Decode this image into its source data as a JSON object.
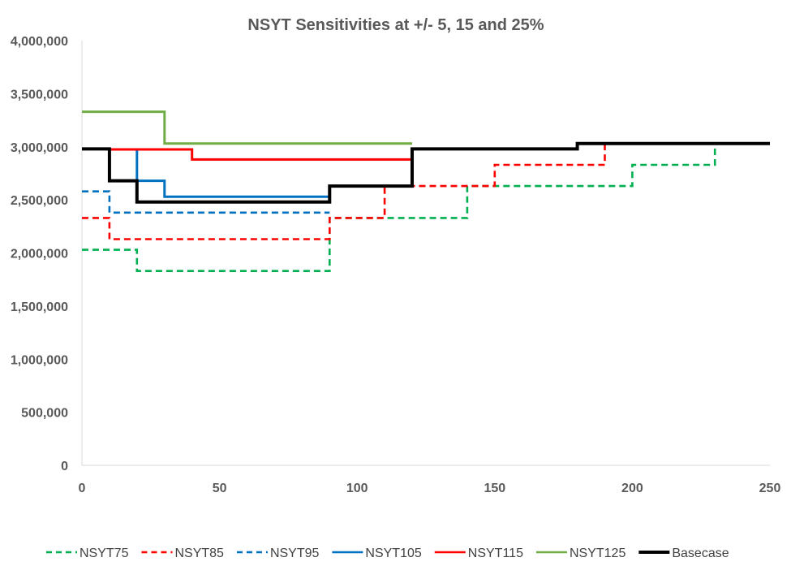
{
  "chart_data": {
    "type": "line",
    "title": "NSYT Sensitivities at +/- 5, 15 and 25%",
    "xlabel": "",
    "ylabel": "",
    "xlim": [
      0,
      250
    ],
    "ylim": [
      0,
      4000000
    ],
    "x_ticks": [
      0,
      50,
      100,
      150,
      200,
      250
    ],
    "x_tick_labels": [
      "0",
      "50",
      "100",
      "150",
      "200",
      "250"
    ],
    "y_ticks": [
      0,
      500000,
      1000000,
      1500000,
      2000000,
      2500000,
      3000000,
      3500000,
      4000000
    ],
    "y_tick_labels": [
      "0",
      "500,000",
      "1,000,000",
      "1,500,000",
      "2,000,000",
      "2,500,000",
      "3,000,000",
      "3,500,000",
      "4,000,000"
    ],
    "grid": false,
    "legend_position": "bottom",
    "series": [
      {
        "name": "NSYT75",
        "color": "#00B050",
        "dashed": true,
        "points": [
          [
            0,
            2030000
          ],
          [
            20,
            2030000
          ],
          [
            20,
            1830000
          ],
          [
            90,
            1830000
          ],
          [
            90,
            2330000
          ],
          [
            140,
            2330000
          ],
          [
            140,
            2630000
          ],
          [
            200,
            2630000
          ],
          [
            200,
            2830000
          ],
          [
            230,
            2830000
          ],
          [
            230,
            3030000
          ]
        ]
      },
      {
        "name": "NSYT85",
        "color": "#FF0000",
        "dashed": true,
        "points": [
          [
            0,
            2330000
          ],
          [
            10,
            2330000
          ],
          [
            10,
            2130000
          ],
          [
            90,
            2130000
          ],
          [
            90,
            2330000
          ],
          [
            110,
            2330000
          ],
          [
            110,
            2630000
          ],
          [
            150,
            2630000
          ],
          [
            150,
            2830000
          ],
          [
            190,
            2830000
          ],
          [
            190,
            3030000
          ]
        ]
      },
      {
        "name": "NSYT95",
        "color": "#0070C0",
        "dashed": true,
        "points": [
          [
            0,
            2580000
          ],
          [
            10,
            2580000
          ],
          [
            10,
            2380000
          ],
          [
            90,
            2380000
          ]
        ]
      },
      {
        "name": "NSYT105",
        "color": "#0070C0",
        "dashed": false,
        "points": [
          [
            20,
            2980000
          ],
          [
            20,
            2680000
          ],
          [
            30,
            2680000
          ],
          [
            30,
            2530000
          ],
          [
            90,
            2530000
          ]
        ]
      },
      {
        "name": "NSYT115",
        "color": "#FF0000",
        "dashed": false,
        "points": [
          [
            10,
            2975000
          ],
          [
            40,
            2975000
          ],
          [
            40,
            2880000
          ],
          [
            120,
            2880000
          ]
        ]
      },
      {
        "name": "NSYT125",
        "color": "#70AD47",
        "dashed": false,
        "points": [
          [
            0,
            3330000
          ],
          [
            30,
            3330000
          ],
          [
            30,
            3030000
          ],
          [
            120,
            3030000
          ]
        ]
      },
      {
        "name": "Basecase",
        "color": "#000000",
        "dashed": false,
        "points": [
          [
            0,
            2980000
          ],
          [
            10,
            2980000
          ],
          [
            10,
            2680000
          ],
          [
            20,
            2680000
          ],
          [
            20,
            2480000
          ],
          [
            90,
            2480000
          ],
          [
            90,
            2630000
          ],
          [
            120,
            2630000
          ],
          [
            120,
            2980000
          ],
          [
            180,
            2980000
          ],
          [
            180,
            3030000
          ],
          [
            250,
            3030000
          ]
        ]
      }
    ]
  }
}
